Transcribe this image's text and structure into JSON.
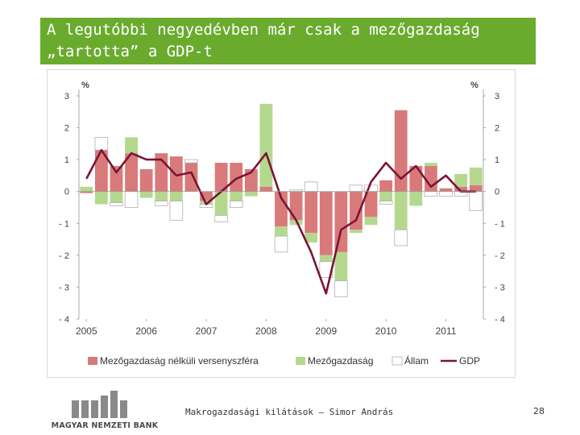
{
  "slide": {
    "title_line1": "A legutóbbi negyedévben már csak a mezőgazdaság",
    "title_line2": "„tartotta” a GDP-t",
    "footer_text": "Makrogazdasági kilátások – Simor András",
    "page_number": "28",
    "logo_text": "MAGYAR NEMZETI BANK",
    "title_bg_color": "#6aab2e"
  },
  "chart_data": {
    "type": "bar",
    "stacked": true,
    "title": "",
    "ylabel_left": "%",
    "ylabel_right": "%",
    "ylim": [
      -4,
      3
    ],
    "yticks": [
      3,
      2,
      1,
      0,
      -1,
      -2,
      -3,
      -4
    ],
    "ytick_labels": [
      "3",
      "2",
      "1",
      "0",
      "- 1",
      "- 2",
      "- 3",
      "- 4"
    ],
    "x_year_labels": [
      "2005",
      "2006",
      "2007",
      "2008",
      "2009",
      "2010",
      "2011"
    ],
    "quarters_per_year": 4,
    "grid": false,
    "legend_position": "bottom",
    "series": [
      {
        "name": "Mezőgazdaság nélküli versenyszféra",
        "kind": "bar",
        "color": "#d87a7a",
        "values": [
          -0.05,
          1.3,
          0.8,
          1.2,
          0.7,
          1.2,
          1.1,
          0.9,
          -0.3,
          0.9,
          0.9,
          0.7,
          0.15,
          -1.1,
          -0.9,
          -1.3,
          -2.0,
          -1.9,
          -1.2,
          -0.8,
          0.35,
          2.55,
          0.8,
          0.8,
          0.1,
          0.15,
          0.2
        ]
      },
      {
        "name": "Mezőgazdaság",
        "kind": "bar",
        "color": "#b5d88f",
        "values": [
          0.15,
          -0.4,
          -0.35,
          0.5,
          -0.2,
          -0.3,
          -0.3,
          0.0,
          -0.1,
          -0.75,
          -0.3,
          -0.15,
          2.6,
          -0.3,
          -0.15,
          -0.3,
          -0.2,
          -0.9,
          -0.1,
          -0.25,
          -0.3,
          -1.2,
          -0.45,
          0.1,
          0.0,
          0.4,
          0.55
        ]
      },
      {
        "name": "Állam",
        "kind": "bar",
        "color": "#ffffff",
        "values": [
          0.0,
          0.4,
          -0.1,
          -0.5,
          0.0,
          -0.15,
          -0.6,
          0.1,
          -0.1,
          -0.2,
          -0.2,
          0.0,
          0.0,
          -0.5,
          0.05,
          0.3,
          -0.5,
          -0.5,
          0.2,
          0.2,
          -0.1,
          -0.5,
          0.0,
          -0.15,
          -0.15,
          -0.15,
          -0.6
        ]
      },
      {
        "name": "GDP",
        "kind": "line",
        "color": "#7b1436",
        "values": [
          0.4,
          1.3,
          0.6,
          1.2,
          1.0,
          1.0,
          0.5,
          0.6,
          -0.4,
          0.0,
          0.4,
          0.6,
          1.2,
          -0.2,
          -0.9,
          -1.9,
          -3.2,
          -1.2,
          -0.9,
          0.3,
          0.9,
          0.4,
          0.8,
          0.15,
          0.5,
          0.0,
          0.0
        ]
      }
    ]
  }
}
